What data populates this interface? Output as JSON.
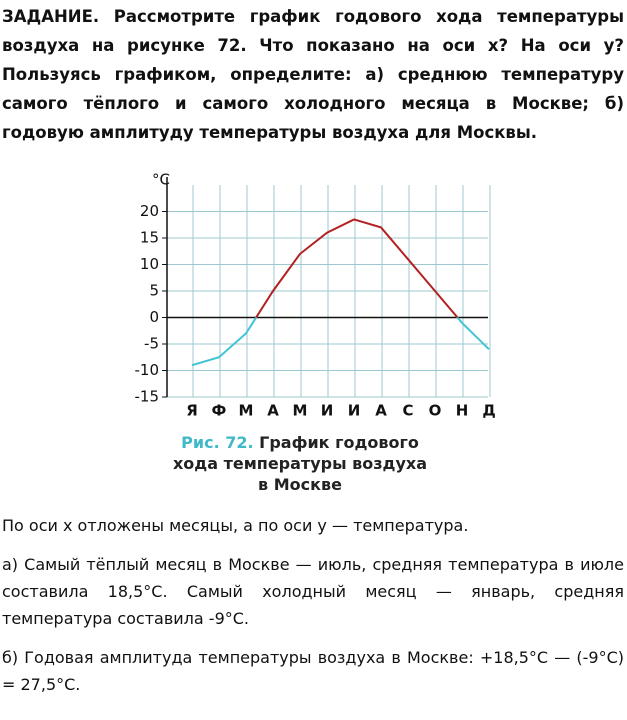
{
  "task": {
    "label": "ЗАДАНИЕ.",
    "text": "Рассмотрите график годового хода температуры воздуха на рисунке 72. Что показано на оси x? На оси y? Пользуясь графиком, определите: а) среднюю температуру самого тёплого и самого холодного месяца в Москве; б) годовую амплитуду температуры воздуха для Москвы."
  },
  "chart_data": {
    "type": "line",
    "y_label": "°C",
    "categories": [
      "Я",
      "Ф",
      "М",
      "А",
      "М",
      "И",
      "И",
      "А",
      "С",
      "О",
      "Н",
      "Д"
    ],
    "values": [
      -9,
      -7.5,
      -3,
      5,
      12,
      16,
      18.5,
      17,
      11,
      5,
      -1,
      -6
    ],
    "color_above_zero": "#b22222",
    "color_below_zero": "#40c4d4",
    "ylim": [
      -15,
      25
    ],
    "yticks": [
      -15,
      -10,
      -5,
      0,
      5,
      10,
      15,
      20
    ],
    "grid": true
  },
  "figure_caption": {
    "number": "Рис. 72.",
    "text": "График годового хода температуры воздуха в Москве"
  },
  "answers": [
    "По оси x отложены месяцы, а по оси y — температура.",
    "а) Самый тёплый месяц в Москве — июль, средняя температура в июле составила 18,5°С. Самый холодный месяц — январь, средняя температура составила -9°С.",
    "б) Годовая амплитуда температуры воздуха в Москве: +18,5°С — (-9°С) = 27,5°С."
  ]
}
